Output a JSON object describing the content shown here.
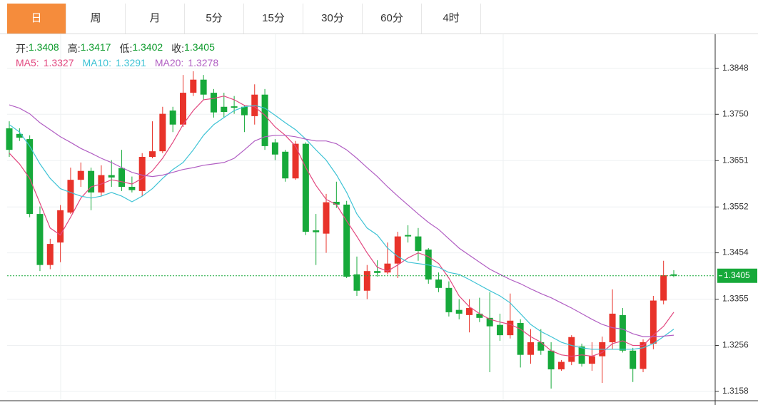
{
  "tabs": [
    "日",
    "周",
    "月",
    "5分",
    "15分",
    "30分",
    "60分",
    "4时"
  ],
  "active_tab": 0,
  "chart_data": {
    "type": "candlestick",
    "ohlc_labels": [
      "开",
      "高",
      "低",
      "收"
    ],
    "up_color": "#e8332a",
    "down_color": "#16a93a",
    "open": [
      1.372,
      1.3708,
      1.3697,
      1.3537,
      1.3428,
      1.3476,
      1.354,
      1.361,
      1.3629,
      1.3583,
      1.362,
      1.3635,
      1.3595,
      1.3586,
      1.3659,
      1.3671,
      1.3758,
      1.3728,
      1.3796,
      1.3824,
      1.3796,
      1.3766,
      1.3767,
      1.3766,
      1.3746,
      1.3792,
      1.369,
      1.367,
      1.3613,
      1.3687,
      1.3502,
      1.3495,
      1.3563,
      1.3557,
      1.3408,
      1.3373,
      1.3415,
      1.3412,
      1.3431,
      1.3492,
      1.3489,
      1.3461,
      1.3397,
      1.3379,
      1.3332,
      1.3321,
      1.3324,
      1.3315,
      1.33,
      1.3278,
      1.3304,
      1.3236,
      1.3263,
      1.3245,
      1.3205,
      1.3221,
      1.3254,
      1.3217,
      1.3233,
      1.3263,
      1.3321,
      1.3245,
      1.3206,
      1.326,
      1.3352,
      1.3408
    ],
    "high": [
      1.3735,
      1.372,
      1.3705,
      1.3553,
      1.3484,
      1.3556,
      1.3636,
      1.3647,
      1.3636,
      1.3641,
      1.3652,
      1.3674,
      1.3617,
      1.3667,
      1.3735,
      1.3766,
      1.3766,
      1.3834,
      1.3842,
      1.3834,
      1.3804,
      1.3796,
      1.3789,
      1.3769,
      1.3814,
      1.3804,
      1.3697,
      1.3674,
      1.3693,
      1.369,
      1.3537,
      1.358,
      1.3606,
      1.3565,
      1.3446,
      1.3428,
      1.3438,
      1.3476,
      1.3499,
      1.3513,
      1.3507,
      1.3464,
      1.3412,
      1.3393,
      1.3355,
      1.3355,
      1.3358,
      1.337,
      1.3324,
      1.3367,
      1.3312,
      1.3291,
      1.3291,
      1.3263,
      1.3225,
      1.3278,
      1.326,
      1.3263,
      1.3275,
      1.3376,
      1.3336,
      1.3251,
      1.3269,
      1.3362,
      1.3437,
      1.3417
    ],
    "low": [
      1.3659,
      1.3693,
      1.353,
      1.3415,
      1.3419,
      1.3434,
      1.3537,
      1.3595,
      1.3545,
      1.3575,
      1.3595,
      1.3586,
      1.3583,
      1.3575,
      1.3656,
      1.3667,
      1.3712,
      1.3723,
      1.3789,
      1.3781,
      1.3743,
      1.3743,
      1.3751,
      1.3712,
      1.3728,
      1.3674,
      1.3652,
      1.3606,
      1.361,
      1.3492,
      1.3428,
      1.3454,
      1.355,
      1.34,
      1.3362,
      1.3355,
      1.3403,
      1.3408,
      1.34,
      1.3476,
      1.3437,
      1.3388,
      1.337,
      1.3318,
      1.3312,
      1.3284,
      1.3306,
      1.3199,
      1.3266,
      1.3271,
      1.3209,
      1.3217,
      1.3236,
      1.3164,
      1.3202,
      1.3214,
      1.3211,
      1.3202,
      1.3176,
      1.3248,
      1.3241,
      1.3178,
      1.3199,
      1.3248,
      1.3344,
      1.3402
    ],
    "close": [
      1.3674,
      1.37,
      1.3537,
      1.3428,
      1.3473,
      1.3545,
      1.361,
      1.3629,
      1.3583,
      1.362,
      1.3615,
      1.3595,
      1.3588,
      1.3659,
      1.3671,
      1.3751,
      1.3728,
      1.3796,
      1.3824,
      1.3792,
      1.3754,
      1.3755,
      1.3764,
      1.3748,
      1.3792,
      1.3682,
      1.3664,
      1.3613,
      1.3687,
      1.3499,
      1.3498,
      1.3562,
      1.3557,
      1.3403,
      1.3373,
      1.3415,
      1.3411,
      1.3431,
      1.3489,
      1.3489,
      1.3458,
      1.3397,
      1.3379,
      1.3327,
      1.3324,
      1.3336,
      1.3315,
      1.3297,
      1.3278,
      1.3309,
      1.3236,
      1.3263,
      1.3245,
      1.3205,
      1.3221,
      1.3274,
      1.3217,
      1.3233,
      1.3263,
      1.3324,
      1.3245,
      1.3206,
      1.3263,
      1.3352,
      1.3406,
      1.3405
    ],
    "series": [
      {
        "name": "MA5",
        "color": "#e2477f",
        "values": [
          1.3667,
          1.3644,
          1.3613,
          1.356,
          1.3507,
          1.3492,
          1.353,
          1.3571,
          1.3595,
          1.3601,
          1.361,
          1.3606,
          1.3601,
          1.3613,
          1.3629,
          1.3656,
          1.369,
          1.3728,
          1.3758,
          1.3781,
          1.3784,
          1.3789,
          1.3781,
          1.3769,
          1.3766,
          1.3748,
          1.3723,
          1.3705,
          1.3682,
          1.3636,
          1.3598,
          1.3568,
          1.3557,
          1.3522,
          1.3489,
          1.3454,
          1.3423,
          1.3415,
          1.3428,
          1.3443,
          1.3454,
          1.3446,
          1.3431,
          1.34,
          1.3362,
          1.3339,
          1.3324,
          1.3312,
          1.3306,
          1.3301,
          1.3291,
          1.3275,
          1.3263,
          1.3245,
          1.3236,
          1.3233,
          1.3236,
          1.3233,
          1.3241,
          1.326,
          1.3266,
          1.3256,
          1.3256,
          1.3278,
          1.3297,
          1.3327
        ]
      },
      {
        "name": "MA10",
        "color": "#3ec3d5",
        "values": [
          1.3728,
          1.3712,
          1.3682,
          1.3644,
          1.3613,
          1.3591,
          1.3583,
          1.3575,
          1.3571,
          1.3575,
          1.3583,
          1.3575,
          1.3563,
          1.3575,
          1.3591,
          1.3613,
          1.3632,
          1.3647,
          1.3674,
          1.3705,
          1.3728,
          1.3743,
          1.3758,
          1.3766,
          1.3769,
          1.3763,
          1.3748,
          1.3732,
          1.3717,
          1.3697,
          1.3674,
          1.3652,
          1.3621,
          1.3583,
          1.3537,
          1.3507,
          1.3492,
          1.3464,
          1.3446,
          1.3434,
          1.3431,
          1.3428,
          1.3423,
          1.3412,
          1.3408,
          1.3397,
          1.3385,
          1.3373,
          1.3362,
          1.3347,
          1.3324,
          1.3301,
          1.3286,
          1.3275,
          1.3263,
          1.3256,
          1.3251,
          1.3248,
          1.3248,
          1.3248,
          1.3248,
          1.3248,
          1.3251,
          1.326,
          1.3275,
          1.3291
        ]
      },
      {
        "name": "MA20",
        "color": "#b15ec3",
        "values": [
          1.377,
          1.3763,
          1.3751,
          1.3732,
          1.3717,
          1.3702,
          1.369,
          1.3677,
          1.3667,
          1.3656,
          1.3647,
          1.3636,
          1.3626,
          1.362,
          1.3617,
          1.362,
          1.3626,
          1.3632,
          1.3636,
          1.3641,
          1.3644,
          1.3647,
          1.3656,
          1.3674,
          1.3693,
          1.3702,
          1.3705,
          1.3705,
          1.3702,
          1.3697,
          1.3693,
          1.3693,
          1.3687,
          1.3674,
          1.3656,
          1.3636,
          1.3617,
          1.3595,
          1.3575,
          1.3556,
          1.3537,
          1.3519,
          1.3504,
          1.3484,
          1.3464,
          1.3449,
          1.3434,
          1.3419,
          1.3408,
          1.3397,
          1.3388,
          1.3377,
          1.3367,
          1.3358,
          1.3347,
          1.3336,
          1.3324,
          1.3312,
          1.3301,
          1.3294,
          1.3291,
          1.3281,
          1.3275,
          1.3275,
          1.3276,
          1.3278
        ]
      }
    ],
    "last_price": 1.3405,
    "ylim": [
      1.3138,
      1.3918
    ],
    "yticks": [
      1.3848,
      {
        "value": 1.375,
        "label": "1.3750"
      },
      1.3651,
      1.3552,
      1.3454,
      1.3355,
      1.3256,
      1.3158
    ],
    "grid": true
  }
}
